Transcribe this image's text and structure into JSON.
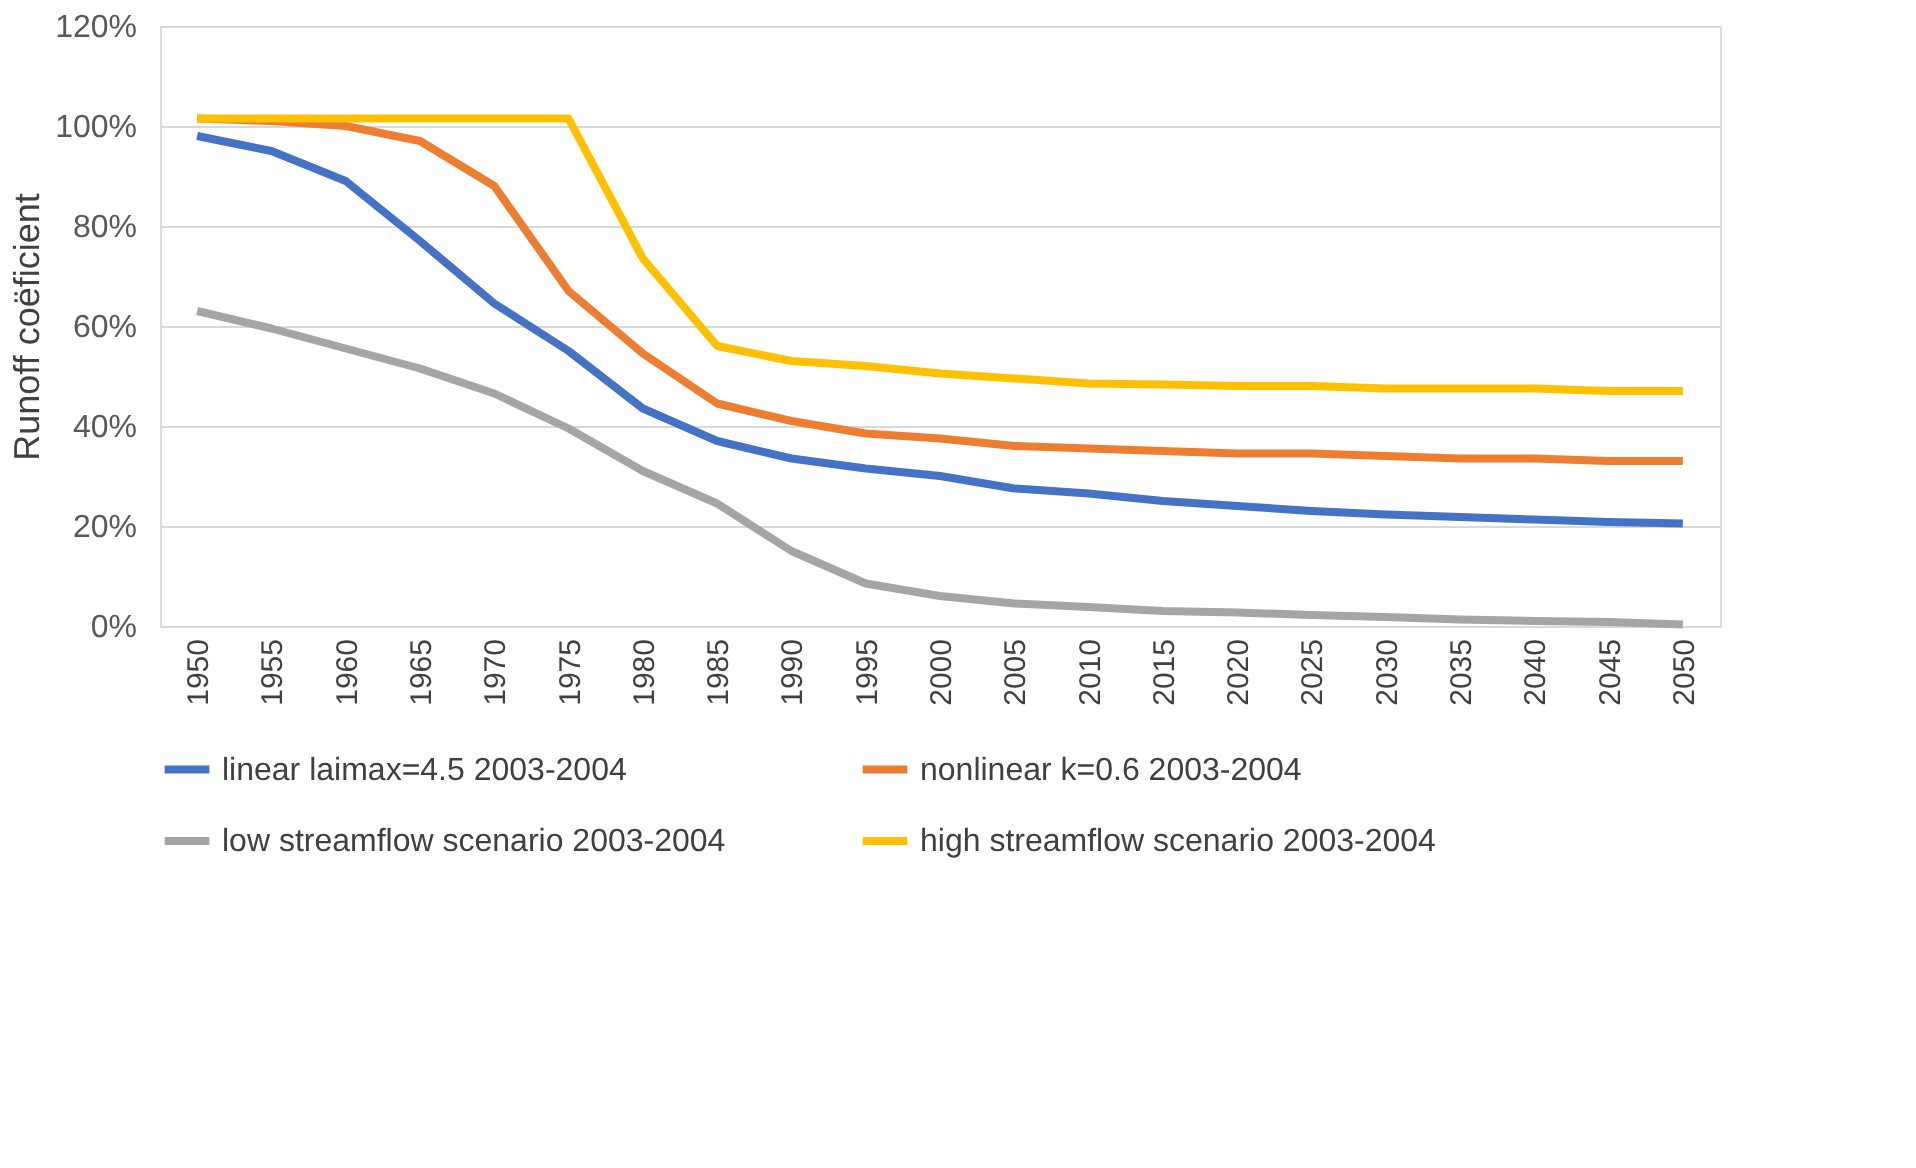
{
  "chart_data": {
    "type": "line",
    "ylabel": "Runoff coëficient",
    "categories": [
      "1950",
      "1955",
      "1960",
      "1965",
      "1970",
      "1975",
      "1980",
      "1985",
      "1990",
      "1995",
      "2000",
      "2005",
      "2010",
      "2015",
      "2020",
      "2025",
      "2030",
      "2035",
      "2040",
      "2045",
      "2050"
    ],
    "series": [
      {
        "name": "linear laimax=4.5 2003-2004",
        "color": "#4472c4",
        "values": [
          98,
          95,
          89,
          77,
          64.5,
          55,
          43.5,
          37,
          33.5,
          31.5,
          30,
          27.5,
          26.5,
          25,
          24,
          23,
          22.3,
          21.8,
          21.3,
          20.8,
          20.5
        ]
      },
      {
        "name": "nonlinear k=0.6 2003-2004",
        "color": "#ed7d31",
        "values": [
          101.5,
          101,
          100,
          97,
          88,
          67,
          54.5,
          44.5,
          41,
          38.5,
          37.5,
          36,
          35.5,
          35,
          34.5,
          34.5,
          34,
          33.5,
          33.5,
          33,
          33
        ]
      },
      {
        "name": "low streamflow scenario 2003-2004",
        "color": "#a5a5a5",
        "values": [
          63,
          59.5,
          55.5,
          51.5,
          46.5,
          39.5,
          31,
          24.5,
          15,
          8.5,
          6,
          4.5,
          3.8,
          3,
          2.7,
          2.2,
          1.8,
          1.3,
          1,
          0.8,
          0.3
        ]
      },
      {
        "name": "high streamflow scenario 2003-2004",
        "color": "#ffc000",
        "values": [
          101.5,
          101.5,
          101.5,
          101.5,
          101.5,
          101.5,
          73.5,
          56,
          53,
          52,
          50.5,
          49.5,
          48.5,
          48.3,
          48,
          48,
          47.5,
          47.5,
          47.5,
          47,
          47
        ]
      }
    ],
    "ylim": [
      0,
      120
    ],
    "yticks": [
      {
        "value": 0,
        "label": "0%"
      },
      {
        "value": 20,
        "label": "20%"
      },
      {
        "value": 40,
        "label": "40%"
      },
      {
        "value": 60,
        "label": "60%"
      },
      {
        "value": 80,
        "label": "80%"
      },
      {
        "value": 100,
        "label": "100%"
      },
      {
        "value": 120,
        "label": "120%"
      }
    ],
    "grid": "y",
    "legend": "bottom",
    "line_style": "solid",
    "marker": "none"
  }
}
